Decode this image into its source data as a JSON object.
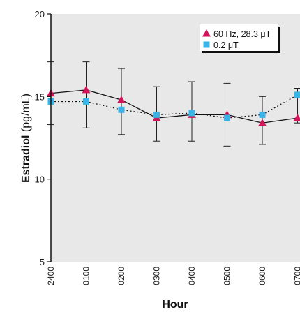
{
  "chart_data": {
    "type": "line",
    "title": "",
    "xlabel": "Hour",
    "ylabel_bold": "Estradiol",
    "ylabel_unit": " (pg/mL)",
    "categories": [
      "2400",
      "0100",
      "0200",
      "0300",
      "0400",
      "0500",
      "0600",
      "0700"
    ],
    "ylim": [
      5,
      20
    ],
    "yticks": [
      5,
      10,
      15,
      20
    ],
    "grid": false,
    "legend": "top-right",
    "series": [
      {
        "name": "60 Hz, 28.3 μT",
        "marker": "triangle",
        "line": "solid",
        "color": "#d4145a",
        "values": [
          15.2,
          15.4,
          14.8,
          13.7,
          13.9,
          13.9,
          13.4,
          13.7
        ],
        "err_upper": [
          17.1,
          17.1,
          16.7,
          15.6,
          15.9,
          15.8,
          15.0,
          15.5
        ],
        "err_lower": [
          13.3,
          13.1,
          12.7,
          12.3,
          12.3,
          12.0,
          12.1,
          13.4
        ]
      },
      {
        "name": "0.2 μT",
        "marker": "square",
        "line": "dotted",
        "color": "#3ab4e6",
        "values": [
          14.7,
          14.7,
          14.2,
          13.9,
          14.0,
          13.7,
          13.9,
          15.1
        ],
        "err_upper": [],
        "err_lower": []
      }
    ]
  }
}
